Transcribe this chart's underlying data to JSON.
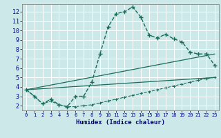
{
  "xlabel": "Humidex (Indice chaleur)",
  "background_color": "#cce8e8",
  "grid_color": "#ffffff",
  "line_color": "#1a6b5a",
  "xlim": [
    -0.5,
    23.5
  ],
  "ylim": [
    1.5,
    12.8
  ],
  "xticks": [
    0,
    1,
    2,
    3,
    4,
    5,
    6,
    7,
    8,
    9,
    10,
    11,
    12,
    13,
    14,
    15,
    16,
    17,
    18,
    19,
    20,
    21,
    22,
    23
  ],
  "yticks": [
    2,
    3,
    4,
    5,
    6,
    7,
    8,
    9,
    10,
    11,
    12
  ],
  "curve1_x": [
    0,
    1,
    2,
    3,
    4,
    5,
    6,
    7,
    8,
    9,
    10,
    11,
    12,
    13,
    14,
    15,
    16,
    17,
    18,
    19,
    20,
    21,
    22,
    23
  ],
  "curve1_y": [
    3.7,
    3.0,
    2.2,
    2.7,
    2.1,
    1.9,
    3.0,
    3.0,
    4.5,
    7.5,
    10.4,
    11.8,
    12.0,
    12.5,
    11.4,
    9.5,
    9.2,
    9.6,
    9.1,
    8.8,
    7.7,
    7.5,
    7.5,
    6.3
  ],
  "curve2_x": [
    0,
    1,
    2,
    3,
    4,
    5,
    6,
    7,
    8,
    9,
    10,
    11,
    12,
    13,
    14,
    15,
    16,
    17,
    18,
    19,
    20,
    21,
    22,
    23
  ],
  "curve2_y": [
    3.7,
    3.0,
    2.2,
    2.5,
    2.1,
    1.9,
    1.9,
    2.0,
    2.1,
    2.3,
    2.5,
    2.7,
    2.9,
    3.1,
    3.3,
    3.5,
    3.7,
    3.9,
    4.1,
    4.3,
    4.5,
    4.7,
    4.9,
    5.0
  ],
  "curve3_x": [
    0,
    23
  ],
  "curve3_y": [
    3.7,
    7.5
  ],
  "curve4_x": [
    0,
    23
  ],
  "curve4_y": [
    3.7,
    5.0
  ]
}
